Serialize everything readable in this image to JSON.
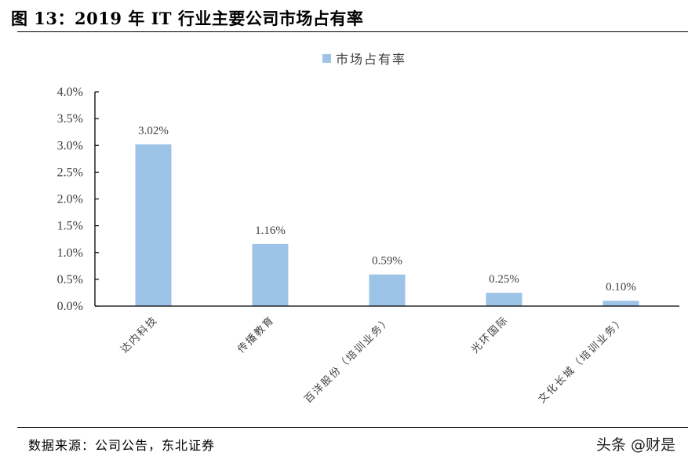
{
  "figure": {
    "title": "图 13：2019 年 IT 行业主要公司市场占有率",
    "source": "数据来源：公司公告，东北证券",
    "watermark": "头条 @财是"
  },
  "colors": {
    "bar": "#9DC3E6",
    "axis": "#000000",
    "text": "#404040"
  },
  "chart_data": {
    "type": "bar",
    "title": "2019 年 IT 行业主要公司市场占有率",
    "xlabel": "",
    "ylabel": "",
    "categories": [
      "达内科技",
      "传播教育",
      "百洋股份（培训业务）",
      "光环国际",
      "文化长城（培训业务）"
    ],
    "series": [
      {
        "name": "市场占有率",
        "values": [
          3.02,
          1.16,
          0.59,
          0.25,
          0.1
        ]
      }
    ],
    "data_labels": [
      "3.02%",
      "1.16%",
      "0.59%",
      "0.25%",
      "0.10%"
    ],
    "ylim": [
      0,
      4.0
    ],
    "yticks": [
      "0.0%",
      "0.5%",
      "1.0%",
      "1.5%",
      "2.0%",
      "2.5%",
      "3.0%",
      "3.5%",
      "4.0%"
    ],
    "legend_position": "top",
    "grid": false
  }
}
